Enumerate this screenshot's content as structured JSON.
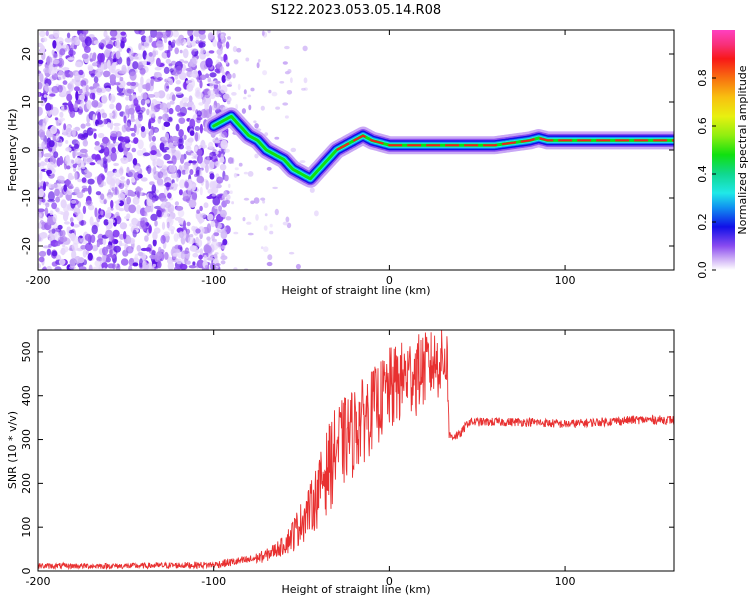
{
  "title": "S122.2023.053.05.14.R08",
  "chart_data": [
    {
      "type": "heatmap",
      "xlabel": "Height of straight line (km)",
      "ylabel": "Frequency (Hz)",
      "xlim": [
        -200,
        162
      ],
      "ylim": [
        -25,
        25
      ],
      "xticks": [
        -200,
        -100,
        0,
        100
      ],
      "xtick_labels": [
        "-200",
        "-100",
        "0",
        "100"
      ],
      "yticks": [
        -20,
        -10,
        0,
        10,
        20
      ],
      "ytick_labels": [
        "-20",
        "-10",
        "0",
        "10",
        "20"
      ],
      "colorbar": {
        "label": "Normalized spectral amplitude",
        "range": [
          0,
          1
        ],
        "ticks": [
          0.0,
          0.2,
          0.4,
          0.6,
          0.8
        ],
        "tick_labels": [
          "0.0",
          "0.2",
          "0.4",
          "0.6",
          "0.8"
        ],
        "colormap": "gist_ncar"
      },
      "noise_region": {
        "x_range": [
          -200,
          -100
        ],
        "y_range": [
          -25,
          25
        ]
      },
      "ridge": {
        "x": [
          -100,
          -95,
          -90,
          -85,
          -80,
          -75,
          -70,
          -65,
          -60,
          -55,
          -50,
          -45,
          -40,
          -35,
          -30,
          -25,
          -20,
          -15,
          -10,
          0,
          20,
          40,
          60,
          80,
          85,
          90,
          100,
          120,
          162
        ],
        "y": [
          5,
          6,
          7,
          5,
          3,
          2,
          0,
          -1,
          -2,
          -4,
          -5,
          -6,
          -4,
          -2,
          0,
          1,
          2,
          3,
          2,
          1,
          1,
          1,
          1,
          2,
          2.5,
          2,
          2,
          2,
          2
        ]
      }
    },
    {
      "type": "line",
      "xlabel": "Height of straight line (km)",
      "ylabel": "SNR (10 * v/v)",
      "xlim": [
        -200,
        162
      ],
      "ylim": [
        0,
        550
      ],
      "xticks": [
        -200,
        -100,
        0,
        100
      ],
      "xtick_labels": [
        "-200",
        "-100",
        "0",
        "100"
      ],
      "yticks": [
        0,
        100,
        200,
        300,
        400,
        500
      ],
      "ytick_labels": [
        "0",
        "100",
        "200",
        "300",
        "400",
        "500"
      ],
      "color": "#e83030",
      "envelope": {
        "x": [
          -200,
          -150,
          -100,
          -90,
          -80,
          -70,
          -60,
          -55,
          -50,
          -45,
          -40,
          -35,
          -30,
          -25,
          -20,
          -15,
          -10,
          -5,
          0,
          5,
          10,
          15,
          20,
          25,
          30,
          33,
          34,
          40,
          45,
          60,
          80,
          100,
          120,
          140,
          162
        ],
        "low": [
          5,
          5,
          6,
          10,
          15,
          20,
          35,
          40,
          60,
          80,
          100,
          130,
          160,
          190,
          210,
          240,
          270,
          290,
          300,
          320,
          340,
          350,
          365,
          380,
          390,
          400,
          295,
          300,
          330,
          330,
          330,
          325,
          330,
          335,
          335
        ],
        "high": [
          18,
          18,
          22,
          30,
          35,
          50,
          80,
          120,
          160,
          200,
          260,
          330,
          380,
          400,
          420,
          440,
          460,
          480,
          510,
          520,
          530,
          540,
          545,
          550,
          550,
          550,
          320,
          320,
          350,
          350,
          350,
          345,
          350,
          355,
          355
        ]
      }
    }
  ]
}
